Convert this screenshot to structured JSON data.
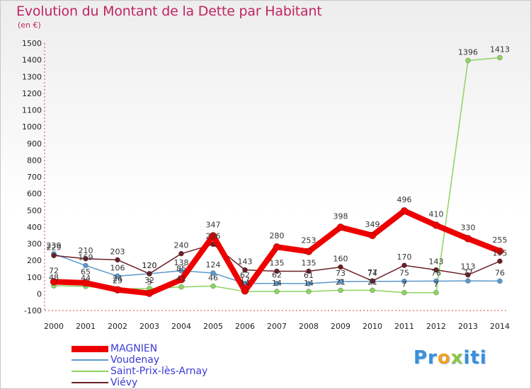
{
  "title": "Evolution du Montant de la Dette par Habitant",
  "unit": "(en €)",
  "logo": {
    "p1": "Pr",
    "p2": "o",
    "p3": "x",
    "p4": "iti"
  },
  "colors": {
    "MAGNIEN": "#ee0000",
    "Voudenay": "#5b98cc",
    "Saint-Prix-lès-Arnay": "#8cd460",
    "Viévy": "#6b1f26"
  },
  "chart_data": {
    "type": "line",
    "title": "Evolution du Montant de la Dette par Habitant",
    "ylabel": "(en €)",
    "ylim": [
      -100,
      1500
    ],
    "yticks": [
      -100,
      0,
      100,
      200,
      300,
      400,
      500,
      600,
      700,
      800,
      900,
      1000,
      1100,
      1200,
      1300,
      1400,
      1500
    ],
    "x": [
      2000,
      2001,
      2002,
      2003,
      2004,
      2005,
      2006,
      2007,
      2008,
      2009,
      2010,
      2011,
      2012,
      2013,
      2014
    ],
    "legend": "bottom-left",
    "grid": false,
    "series": [
      {
        "name": "MAGNIEN",
        "values": [
          72,
          65,
          24,
          3,
          85,
          347,
          17,
          280,
          253,
          398,
          349,
          496,
          410,
          330,
          255
        ]
      },
      {
        "name": "Voudenay",
        "values": [
          239,
          169,
          106,
          120,
          138,
          124,
          62,
          62,
          61,
          73,
          74,
          75,
          76,
          77,
          76
        ]
      },
      {
        "name": "Saint-Prix-lès-Arnay",
        "values": [
          48,
          44,
          29,
          32,
          41,
          46,
          14,
          14,
          14,
          21,
          21,
          7,
          7,
          1396,
          1413
        ]
      },
      {
        "name": "Viévy",
        "values": [
          229,
          210,
          203,
          120,
          240,
          296,
          143,
          135,
          135,
          160,
          77,
          170,
          143,
          113,
          195
        ]
      }
    ],
    "point_labels": {
      "MAGNIEN": [
        "72",
        "65",
        "24",
        "3",
        "85",
        "347",
        "17",
        "280",
        "253",
        "398",
        "349",
        "496",
        "410",
        "330",
        "255"
      ],
      "Voudenay": [
        "239",
        "169",
        "106",
        "120",
        "138",
        "124",
        "62",
        "62",
        "61",
        "73",
        "74",
        "75",
        "76",
        "77",
        "76"
      ],
      "Saint-Prix-lès-Arnay": [
        "48",
        "44",
        "29",
        "32",
        "41",
        "46",
        "14",
        "14",
        "14",
        "21",
        "21",
        "7",
        "7",
        "1396",
        "1413"
      ],
      "Viévy": [
        "229",
        "210",
        "203",
        "120",
        "240",
        "296",
        "143",
        "135",
        "135",
        "160",
        "77",
        "170",
        "143",
        "113",
        "195"
      ]
    }
  }
}
